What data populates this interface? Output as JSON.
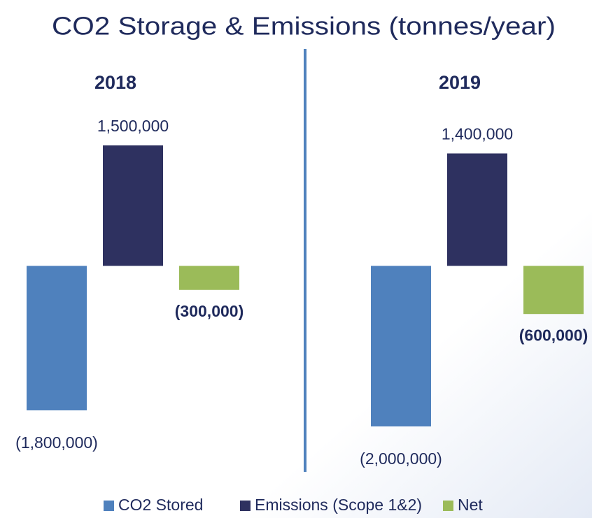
{
  "title": "CO2 Storage & Emissions (tonnes/year)",
  "chart_data": [
    {
      "type": "bar",
      "title": "2018",
      "series": [
        {
          "name": "CO2 Stored",
          "color": "#4f81bd",
          "values": [
            -1800000
          ],
          "value_labels": [
            "(1,800,000)"
          ]
        },
        {
          "name": "Emissions (Scope 1&2)",
          "color": "#2e3160",
          "values": [
            1500000
          ],
          "value_labels": [
            "1,500,000"
          ]
        },
        {
          "name": "Net",
          "color": "#9bbb59",
          "values": [
            -300000
          ],
          "value_labels": [
            "(300,000)"
          ]
        }
      ]
    },
    {
      "type": "bar",
      "title": "2019",
      "series": [
        {
          "name": "CO2 Stored",
          "color": "#4f81bd",
          "values": [
            -2000000
          ],
          "value_labels": [
            "(2,000,000)"
          ]
        },
        {
          "name": "Emissions (Scope 1&2)",
          "color": "#2e3160",
          "values": [
            1400000
          ],
          "value_labels": [
            "1,400,000"
          ]
        },
        {
          "name": "Net",
          "color": "#9bbb59",
          "values": [
            -600000
          ],
          "value_labels": [
            "(600,000)"
          ]
        }
      ]
    }
  ]
}
